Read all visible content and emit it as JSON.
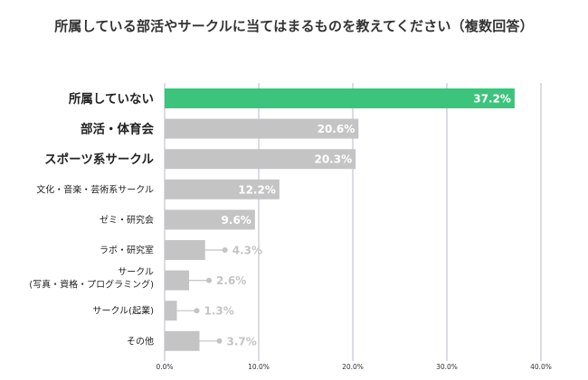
{
  "chart_data": {
    "type": "bar",
    "orientation": "horizontal",
    "title": "所属している部活やサークルに当てはまるものを教えてください（複数回答）",
    "xlabel": "",
    "ylabel": "",
    "xlim": [
      0,
      40
    ],
    "x_ticks": [
      "0.0%",
      "10.0%",
      "20.0%",
      "30.0%",
      "40.0%"
    ],
    "grid": true,
    "categories": [
      "所属していない",
      "部活・体育会",
      "スポーツ系サークル",
      "文化・音楽・芸術系サークル",
      "ゼミ・研究会",
      "ラボ・研究室",
      "サークル\n(写真・資格・プログラミング)",
      "サークル(起業)",
      "その他"
    ],
    "values": [
      37.2,
      20.6,
      20.3,
      12.2,
      9.6,
      4.3,
      2.6,
      1.3,
      3.7
    ],
    "value_labels": [
      "37.2%",
      "20.6%",
      "20.3%",
      "12.2%",
      "9.6%",
      "4.3%",
      "2.6%",
      "1.3%",
      "3.7%"
    ],
    "highlight_index": 0,
    "colors": {
      "highlight": "#3cc47c",
      "bar": "#c4c4c4",
      "outside_label": "#c4c4c4",
      "inside_label": "#ffffff",
      "grid": "#b7b7cc"
    }
  }
}
